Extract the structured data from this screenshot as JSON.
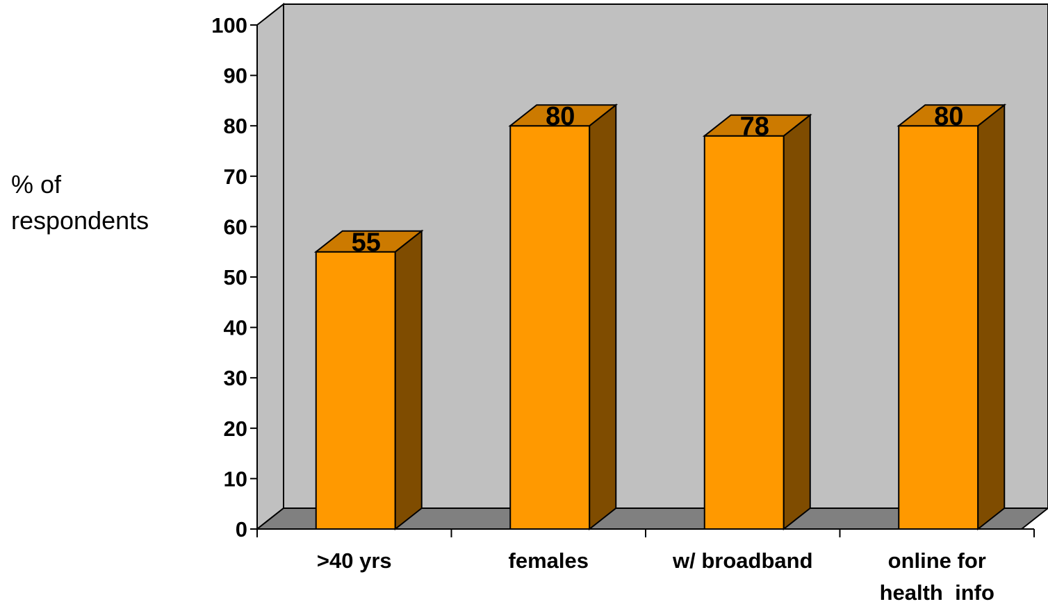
{
  "chart_data": {
    "type": "bar",
    "style": "3d",
    "categories": [
      ">40 yrs",
      "females",
      "w/ broadband",
      "online for\nhealth  info"
    ],
    "values": [
      55,
      80,
      78,
      80
    ],
    "data_labels": [
      "55",
      "80",
      "78",
      "80"
    ],
    "title": "",
    "xlabel": "",
    "ylabel": "% of\nrespondents",
    "ylim": [
      0,
      100
    ],
    "yticks": [
      "0",
      "10",
      "20",
      "30",
      "40",
      "50",
      "60",
      "70",
      "80",
      "90",
      "100"
    ],
    "grid": false,
    "colors": {
      "bar_front": "#FF9900",
      "bar_side": "#7F4C00",
      "bar_top": "#CC7A00",
      "wall": "#C0C0C0",
      "floor": "#808080"
    }
  }
}
